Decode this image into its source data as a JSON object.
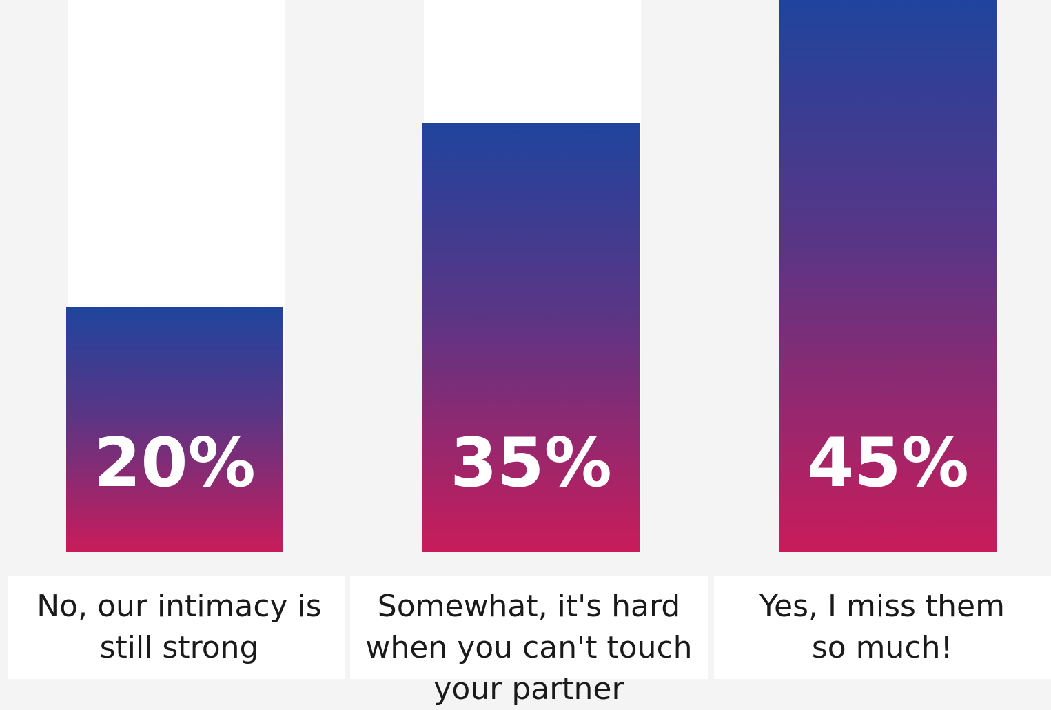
{
  "chart_data": {
    "type": "bar",
    "categories": [
      "No, our intimacy is still strong",
      "Somewhat, it's hard when you can't touch your partner",
      "Yes, I miss them so much!"
    ],
    "values": [
      20,
      35,
      45
    ],
    "value_labels": [
      "20%",
      "35%",
      "45%"
    ],
    "ylim": [
      0,
      100
    ],
    "title": "",
    "xlabel": "",
    "ylabel": "",
    "grid": false,
    "legend": "none"
  },
  "colors": {
    "background": "#f4f4f4",
    "track": "#ffffff",
    "bar_gradient_top": "#1f449d",
    "bar_gradient_mid": "#5b3585",
    "bar_gradient_bottom": "#c91c5a",
    "value_label": "#ffffff",
    "category_label": "#1a1a1a"
  }
}
